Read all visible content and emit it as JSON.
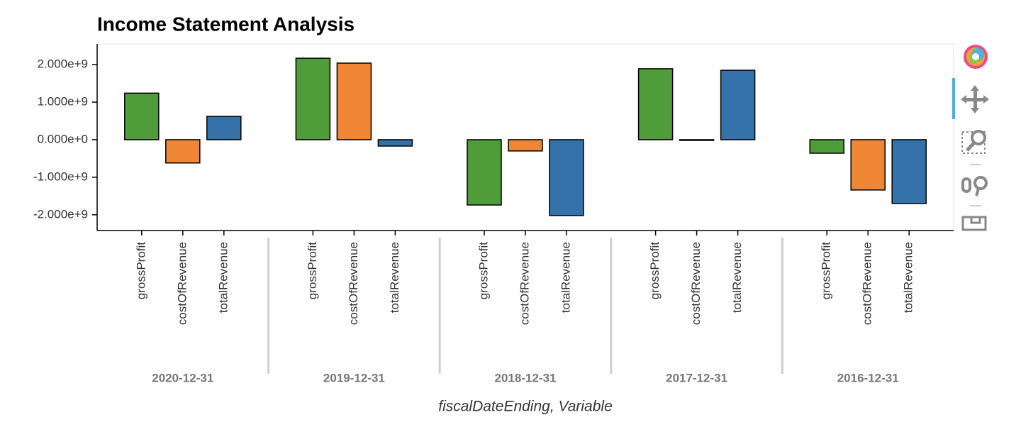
{
  "chart_data": {
    "type": "bar",
    "title": "Income Statement Analysis",
    "x_label": "fiscalDateEnding, Variable",
    "categories": [
      "2020-12-31",
      "2019-12-31",
      "2018-12-31",
      "2017-12-31",
      "2016-12-31"
    ],
    "series": [
      {
        "name": "grossProfit",
        "color": "#4e9d3a",
        "values": [
          1240000000,
          2170000000,
          -1740000000,
          1890000000,
          -360000000
        ]
      },
      {
        "name": "costOfRevenue",
        "color": "#ef8636",
        "values": [
          -620000000,
          2040000000,
          -300000000,
          -20000000,
          -1340000000
        ]
      },
      {
        "name": "totalRevenue",
        "color": "#3572a9",
        "values": [
          620000000,
          -170000000,
          -2020000000,
          1850000000,
          -1700000000
        ]
      }
    ],
    "ylim": [
      -2420000000,
      2550000000
    ],
    "yticks": [
      {
        "value": -2000000000,
        "label": "-2.000e+9"
      },
      {
        "value": -1000000000,
        "label": "-1.000e+9"
      },
      {
        "value": 0,
        "label": "0.000e+0"
      },
      {
        "value": 1000000000,
        "label": "1.000e+9"
      },
      {
        "value": 2000000000,
        "label": "2.000e+9"
      }
    ]
  }
}
